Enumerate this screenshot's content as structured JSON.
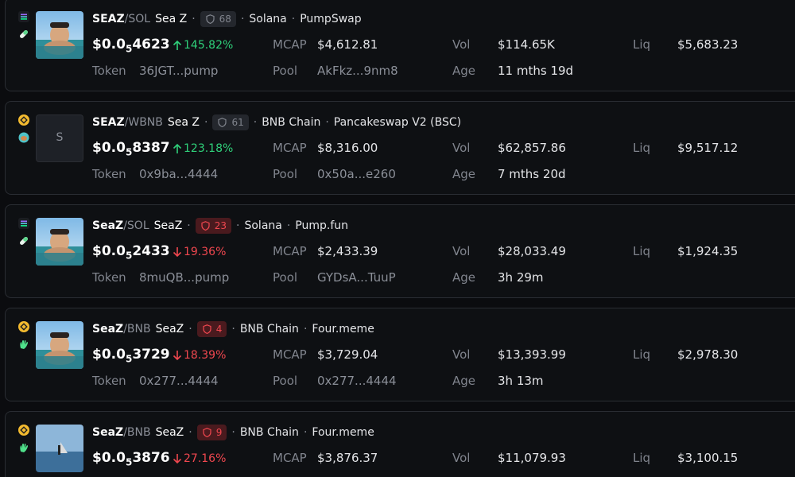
{
  "labels": {
    "mcap": "MCAP",
    "vol": "Vol",
    "liq": "Liq",
    "token": "Token",
    "pool": "Pool",
    "age": "Age"
  },
  "separators": {
    "pair": "/",
    "dot": "·"
  },
  "tokens": [
    {
      "base": "SEAZ",
      "quote": "SOL",
      "name": "Sea Z",
      "score": 68,
      "score_level": "ok",
      "chain": "Solana",
      "dex": "PumpSwap",
      "chain_icon": "solana",
      "dex_icon": "pill",
      "avatar": "photo",
      "price_prefix": "$0.0",
      "price_zeros": "5",
      "price_digits": "4623",
      "change": "145.82%",
      "direction": "up",
      "mcap": "$4,612.81",
      "vol": "$114.65K",
      "liq": "$5,683.23",
      "token": "36JGT...pump",
      "pool": "AkFkz...9nm8",
      "age": "11 mths 19d"
    },
    {
      "base": "SEAZ",
      "quote": "WBNB",
      "name": "Sea Z",
      "score": 61,
      "score_level": "ok",
      "chain": "BNB Chain",
      "dex": "Pancakeswap V2 (BSC)",
      "chain_icon": "bnb",
      "dex_icon": "pancake",
      "avatar": "letter",
      "avatar_letter": "S",
      "price_prefix": "$0.0",
      "price_zeros": "5",
      "price_digits": "8387",
      "change": "123.18%",
      "direction": "up",
      "mcap": "$8,316.00",
      "vol": "$62,857.86",
      "liq": "$9,517.12",
      "token": "0x9ba...4444",
      "pool": "0x50a...e260",
      "age": "7 mths 20d"
    },
    {
      "base": "SeaZ",
      "quote": "SOL",
      "name": "SeaZ",
      "score": 23,
      "score_level": "risk",
      "chain": "Solana",
      "dex": "Pump.fun",
      "chain_icon": "solana",
      "dex_icon": "pill",
      "avatar": "photo",
      "price_prefix": "$0.0",
      "price_zeros": "5",
      "price_digits": "2433",
      "change": "19.36%",
      "direction": "down",
      "mcap": "$2,433.39",
      "vol": "$28,033.49",
      "liq": "$1,924.35",
      "token": "8muQB...pump",
      "pool": "GYDsA...TuuP",
      "age": "3h 29m"
    },
    {
      "base": "SeaZ",
      "quote": "BNB",
      "name": "SeaZ",
      "score": 4,
      "score_level": "risk",
      "chain": "BNB Chain",
      "dex": "Four.meme",
      "chain_icon": "bnb",
      "dex_icon": "hand",
      "avatar": "photo",
      "price_prefix": "$0.0",
      "price_zeros": "5",
      "price_digits": "3729",
      "change": "18.39%",
      "direction": "down",
      "mcap": "$3,729.04",
      "vol": "$13,393.99",
      "liq": "$2,978.30",
      "token": "0x277...4444",
      "pool": "0x277...4444",
      "age": "3h 13m"
    },
    {
      "base": "SeaZ",
      "quote": "BNB",
      "name": "SeaZ",
      "score": 9,
      "score_level": "risk",
      "chain": "BNB Chain",
      "dex": "Four.meme",
      "chain_icon": "bnb",
      "dex_icon": "hand",
      "avatar": "sea",
      "price_prefix": "$0.0",
      "price_zeros": "5",
      "price_digits": "3876",
      "change": "27.16%",
      "direction": "down",
      "mcap": "$3,876.37",
      "vol": "$11,079.93",
      "liq": "$3,100.15"
    }
  ]
}
